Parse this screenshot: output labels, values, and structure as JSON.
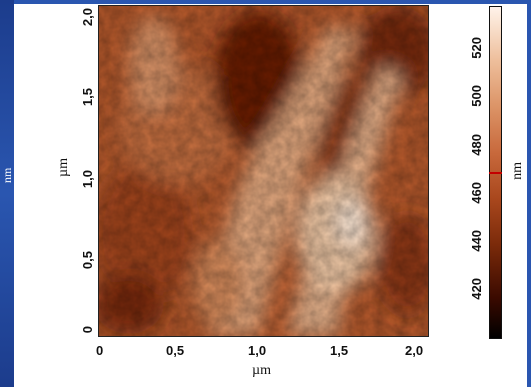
{
  "x_axis": {
    "label": "µm",
    "ticks": [
      "0",
      "0,5",
      "1,0",
      "1,5",
      "2,0"
    ]
  },
  "y_axis": {
    "label": "µm",
    "ticks": [
      "0",
      "0,5",
      "1,0",
      "1,5",
      "2,0"
    ]
  },
  "colorbar": {
    "unit": "nm",
    "ticks": [
      "420",
      "440",
      "460",
      "480",
      "500",
      "520"
    ],
    "marker_value": 466
  },
  "left_panel_unit": "nm",
  "colors": {
    "frame": "#2a56b0",
    "colormap_low": "#000000",
    "colormap_mid": "#b04f22",
    "colormap_high": "#fff3ea"
  }
}
